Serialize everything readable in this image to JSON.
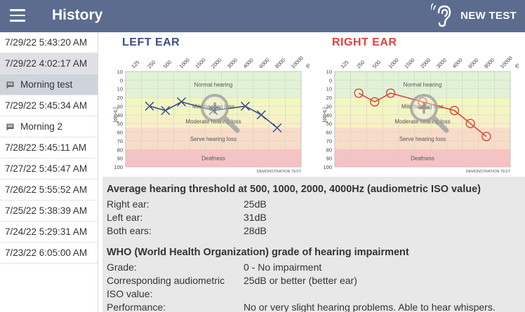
{
  "appbar": {
    "title": "History",
    "new_test_label": "NEW TEST"
  },
  "sidebar": {
    "items": [
      {
        "label": "7/29/22  5:43:20 AM",
        "selected": false,
        "note": false
      },
      {
        "label": "7/29/22  4:02:17 AM",
        "selected": true,
        "note": false
      },
      {
        "label": "Morning test",
        "selected": true,
        "note": true
      },
      {
        "label": "7/29/22  5:45:34 AM",
        "selected": false,
        "note": false
      },
      {
        "label": "Morning 2",
        "selected": false,
        "note": true
      },
      {
        "label": "7/28/22  5:45:11 AM",
        "selected": false,
        "note": false
      },
      {
        "label": "7/27/22  5:45:47 AM",
        "selected": false,
        "note": false
      },
      {
        "label": "7/26/22  5:55:52 AM",
        "selected": false,
        "note": false
      },
      {
        "label": "7/25/22  5:38:39 AM",
        "selected": false,
        "note": false
      },
      {
        "label": "7/24/22  5:29:31 AM",
        "selected": false,
        "note": false
      },
      {
        "label": "7/23/22  6:05:00 AM",
        "selected": false,
        "note": false
      }
    ]
  },
  "audiogram": {
    "freq_labels": [
      "125",
      "250",
      "500",
      "1000",
      "1500",
      "2000",
      "3000",
      "4000",
      "6000",
      "8000",
      "10000",
      "f[Hz]"
    ],
    "db_labels": [
      "10",
      "0",
      "10",
      "20",
      "30",
      "40",
      "50",
      "60",
      "70",
      "80",
      "90",
      "100"
    ],
    "y_axis_label": "[dBHL]",
    "zones": [
      "Normal hearing",
      "Mild hearing loss",
      "Moderate hearing loss",
      "Serve hearing loss",
      "Deafness"
    ],
    "zone_colors": [
      "#e2f3d5",
      "#f3f7bf",
      "#f8f0c6",
      "#f9dcc8",
      "#f7c2c4"
    ],
    "footer": "DEMONSTRATION TEST"
  },
  "left_ear": {
    "title": "LEFT EAR",
    "color": "#3a4f8c",
    "marker": "x",
    "points": [
      [
        "250",
        30
      ],
      [
        "500",
        35
      ],
      [
        "1000",
        25
      ],
      [
        "2000",
        35
      ],
      [
        "4000",
        30
      ],
      [
        "6000",
        40
      ],
      [
        "8000",
        55
      ]
    ]
  },
  "right_ear": {
    "title": "RIGHT EAR",
    "color": "#e0433b",
    "marker": "o",
    "points": [
      [
        "250",
        15
      ],
      [
        "500",
        25
      ],
      [
        "1000",
        15
      ],
      [
        "2000",
        25
      ],
      [
        "4000",
        35
      ],
      [
        "6000",
        50
      ],
      [
        "8000",
        65
      ]
    ]
  },
  "average": {
    "heading": "Average hearing threshold at 500, 1000, 2000, 4000Hz (audiometric ISO value)",
    "rows": [
      {
        "k": "Right ear:",
        "v": "25dB"
      },
      {
        "k": "Left ear:",
        "v": "31dB"
      },
      {
        "k": "Both ears:",
        "v": "28dB"
      }
    ]
  },
  "who": {
    "heading": "WHO (World Health Organization) grade of hearing impairment",
    "rows": [
      {
        "k": "Grade:",
        "v": "0 - No impairment"
      },
      {
        "k": "Corresponding audiometric ISO value:",
        "v": "25dB or better (better ear)"
      },
      {
        "k": "Performance:",
        "v": "No or very slight hearing problems. Able to hear whispers."
      }
    ]
  }
}
